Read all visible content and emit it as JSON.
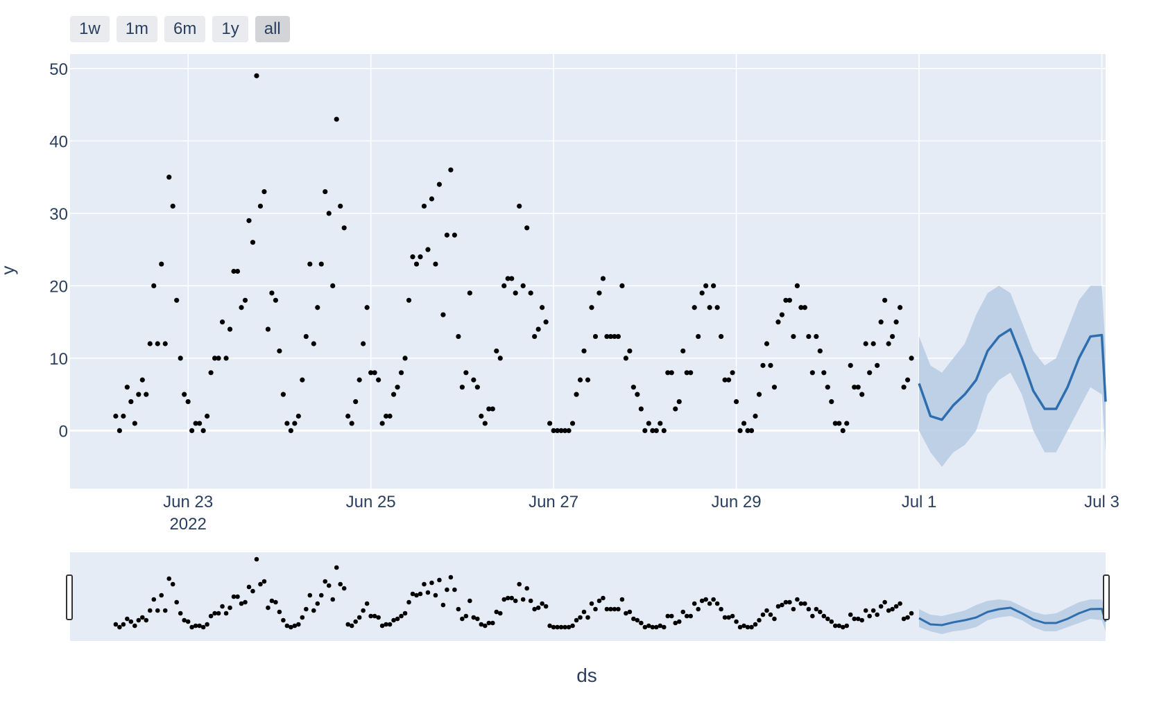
{
  "range_selector": {
    "buttons": [
      "1w",
      "1m",
      "6m",
      "1y",
      "all"
    ],
    "active": "all"
  },
  "colors": {
    "plot_bg": "#e5ecf6",
    "grid": "#ffffff",
    "forecast_line": "#2f6eae",
    "forecast_band": "#b6cbe3",
    "points": "#000000",
    "text": "#2a3f5f"
  },
  "chart_data": {
    "type": "scatter",
    "title": "",
    "xlabel": "ds",
    "ylabel": "y",
    "xlim": [
      "2022-06-21T17:00",
      "2022-07-03T01:00"
    ],
    "ylim": [
      -8,
      52
    ],
    "yticks": [
      0,
      10,
      20,
      30,
      40,
      50
    ],
    "xticks": [
      {
        "date": "2022-06-23T00:00",
        "label": "Jun 23",
        "sublabel": "2022"
      },
      {
        "date": "2022-06-25T00:00",
        "label": "Jun 25"
      },
      {
        "date": "2022-06-27T00:00",
        "label": "Jun 27"
      },
      {
        "date": "2022-06-29T00:00",
        "label": "Jun 29"
      },
      {
        "date": "2022-07-01T00:00",
        "label": "Jul 1"
      },
      {
        "date": "2022-07-03T00:00",
        "label": "Jul 3"
      }
    ],
    "grid": true,
    "range_slider": true,
    "observed": {
      "start": "2022-06-22T05:00",
      "step_hours": 1,
      "y": [
        2,
        0,
        2,
        6,
        4,
        1,
        5,
        7,
        5,
        12,
        20,
        12,
        23,
        12,
        35,
        31,
        18,
        10,
        5,
        4,
        0,
        1,
        1,
        0,
        2,
        8,
        10,
        10,
        15,
        10,
        14,
        22,
        22,
        17,
        18,
        29,
        26,
        49,
        31,
        33,
        14,
        19,
        18,
        11,
        5,
        1,
        0,
        1,
        2,
        7,
        13,
        23,
        12,
        17,
        23,
        33,
        30,
        20,
        43,
        31,
        28,
        2,
        1,
        4,
        7,
        12,
        17,
        8,
        8,
        7,
        1,
        2,
        2,
        5,
        6,
        8,
        10,
        18,
        24,
        23,
        24,
        31,
        25,
        32,
        23,
        34,
        16,
        27,
        36,
        27,
        13,
        6,
        8,
        19,
        7,
        6,
        2,
        1,
        3,
        3,
        11,
        10,
        20,
        21,
        21,
        19,
        31,
        20,
        28,
        19,
        13,
        14,
        17,
        15,
        1,
        0,
        0,
        0,
        0,
        0,
        1,
        5,
        7,
        11,
        7,
        17,
        13,
        19,
        21,
        13,
        13,
        13,
        13,
        20,
        10,
        11,
        6,
        5,
        3,
        0,
        1,
        0,
        0,
        1,
        0,
        8,
        8,
        3,
        4,
        11,
        8,
        8,
        17,
        13,
        19,
        20,
        17,
        20,
        17,
        13,
        7,
        7,
        8,
        4,
        0,
        1,
        0,
        0,
        2,
        5,
        9,
        12,
        9,
        6,
        15,
        16,
        18,
        18,
        13,
        20,
        17,
        17,
        13,
        8,
        13,
        11,
        8,
        6,
        4,
        1,
        1,
        0,
        1,
        9,
        6,
        6,
        5,
        12,
        8,
        12,
        9,
        15,
        18,
        12,
        13,
        15,
        17,
        6,
        7,
        10
      ]
    },
    "forecast": {
      "x": [
        "2022-07-01T00:00",
        "2022-07-01T03:00",
        "2022-07-01T06:00",
        "2022-07-01T09:00",
        "2022-07-01T12:00",
        "2022-07-01T15:00",
        "2022-07-01T18:00",
        "2022-07-01T21:00",
        "2022-07-02T00:00",
        "2022-07-02T03:00",
        "2022-07-02T06:00",
        "2022-07-02T09:00",
        "2022-07-02T12:00",
        "2022-07-02T15:00",
        "2022-07-02T18:00",
        "2022-07-02T21:00",
        "2022-07-03T00:00",
        "2022-07-03T01:00"
      ],
      "yhat": [
        6.5,
        2,
        1.5,
        3.5,
        5,
        7,
        11,
        13,
        14,
        10,
        5.5,
        3,
        3,
        6,
        10,
        13,
        13.2,
        4
      ],
      "lower": [
        0,
        -3,
        -5,
        -3,
        -2,
        0,
        5,
        7,
        8,
        5,
        0,
        -3,
        -3,
        0,
        3,
        6,
        5,
        -3
      ],
      "upper": [
        13,
        9,
        8,
        10,
        12,
        16,
        19,
        20,
        19,
        15,
        11,
        9,
        10,
        14,
        18,
        20,
        20,
        11
      ]
    }
  }
}
